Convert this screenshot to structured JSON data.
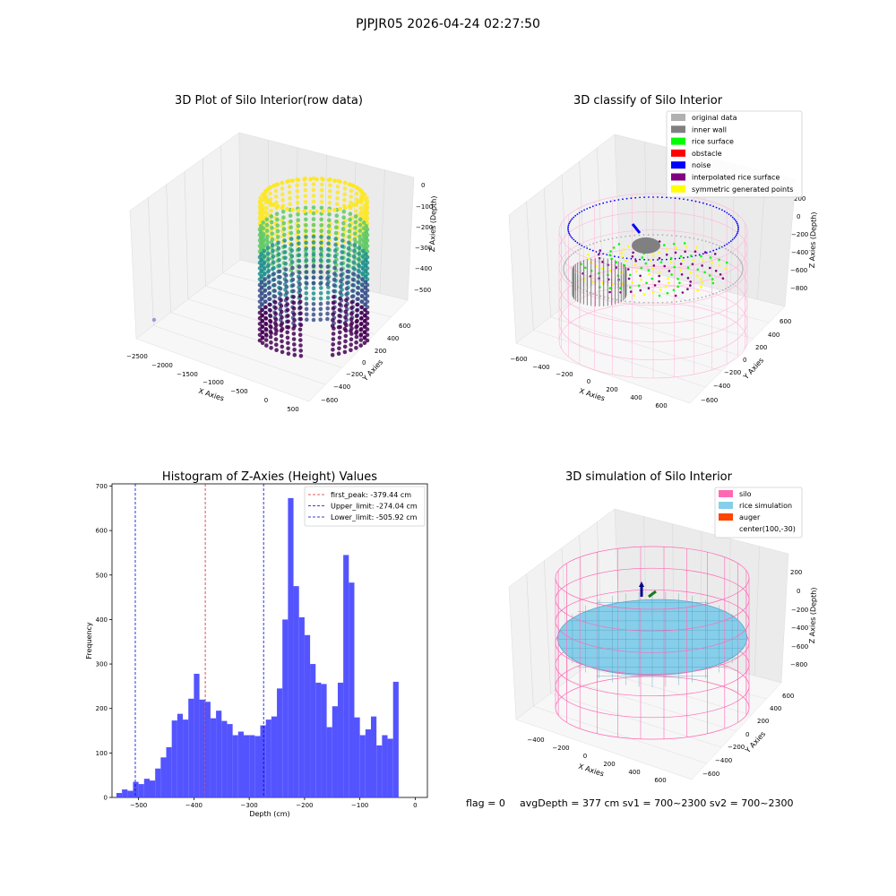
{
  "suptitle": "PJPJR05 2026-04-24 02:27:50",
  "panels": {
    "raw": {
      "title": "3D Plot of Silo Interior(row data)",
      "xlabel": "X Axies",
      "ylabel": "Y Axies",
      "zlabel": "Z Axies (Depth)",
      "xticks": [
        "−2500",
        "−2000",
        "−1500",
        "−1000",
        "−500",
        "0",
        "500"
      ],
      "yticks": [
        "600",
        "400",
        "200",
        "0",
        "−200",
        "−400",
        "−600"
      ],
      "zticks": [
        "0",
        "−100",
        "−200",
        "−300",
        "−400",
        "−500"
      ],
      "colormap": [
        "#fde725",
        "#5ec962",
        "#21918c",
        "#3b528b",
        "#440154"
      ]
    },
    "classify": {
      "title": "3D classify of Silo Interior",
      "xlabel": "X Axies",
      "ylabel": "Y Axies",
      "zlabel": "Z Axies (Depth)",
      "xticks": [
        "−600",
        "−400",
        "−200",
        "0",
        "200",
        "400",
        "600"
      ],
      "yticks": [
        "600",
        "400",
        "200",
        "0",
        "−200",
        "−400",
        "−600"
      ],
      "zticks": [
        "200",
        "0",
        "−200",
        "−400",
        "−600",
        "−800"
      ],
      "legend": [
        {
          "label": "original data",
          "color": "#b0b0b0"
        },
        {
          "label": "inner wall",
          "color": "#808080"
        },
        {
          "label": "rice surface",
          "color": "#00ff00"
        },
        {
          "label": "obstacle",
          "color": "#ff0000"
        },
        {
          "label": "noise",
          "color": "#0000ff"
        },
        {
          "label": "interpolated rice surface",
          "color": "#800080"
        },
        {
          "label": "symmetric generated points",
          "color": "#ffff00"
        }
      ],
      "silo_color": "#ffb6d9"
    },
    "simulation": {
      "title": "3D simulation of Silo Interior",
      "xlabel": "X Axies",
      "ylabel": "Y Axies",
      "zlabel": "Z Axies (Depth)",
      "xticks": [
        "−400",
        "−200",
        "0",
        "200",
        "400",
        "600"
      ],
      "yticks": [
        "600",
        "400",
        "200",
        "0",
        "−200",
        "−400",
        "−600"
      ],
      "zticks": [
        "200",
        "0",
        "−200",
        "−400",
        "−600",
        "−800"
      ],
      "legend": [
        {
          "label": "silo",
          "color": "#ff69b4"
        },
        {
          "label": "rice simulation",
          "color": "#87ceeb"
        },
        {
          "label": "auger",
          "color": "#ff4500"
        },
        {
          "label": "center(100,-30)",
          "color": ""
        }
      ]
    }
  },
  "chart_data": {
    "type": "bar",
    "title": "Histogram of Z-Axies (Height) Values",
    "xlabel": "Depth (cm)",
    "ylabel": "Frequency",
    "xlim": [
      -548,
      22
    ],
    "ylim": [
      0,
      705
    ],
    "xticks": [
      -500,
      -400,
      -300,
      -200,
      -100,
      0
    ],
    "yticks": [
      0,
      100,
      200,
      300,
      400,
      500,
      600,
      700
    ],
    "bar_color": "#4b4bff",
    "bin_start": -540,
    "bin_width": 10,
    "values": [
      10,
      18,
      15,
      35,
      30,
      42,
      38,
      65,
      90,
      113,
      173,
      188,
      175,
      222,
      278,
      220,
      215,
      178,
      195,
      172,
      165,
      140,
      148,
      140,
      140,
      138,
      162,
      175,
      182,
      245,
      400,
      673,
      475,
      405,
      365,
      300,
      258,
      255,
      158,
      205,
      258,
      545,
      483,
      180,
      140,
      153,
      182,
      117,
      140,
      132,
      260
    ],
    "lines": [
      {
        "label": "first_peak: -379.44 cm",
        "x": -379.44,
        "color": "#d62728"
      },
      {
        "label": "Upper_limit: -274.04 cm",
        "x": -274.04,
        "color": "#0000cc"
      },
      {
        "label": "Lower_limit: -505.92 cm",
        "x": -505.92,
        "color": "#0000cc"
      }
    ]
  },
  "footer": {
    "flag": "flag = 0",
    "avg": "avgDepth = 377 cm  sv1 = 700~2300  sv2 = 700~2300"
  }
}
